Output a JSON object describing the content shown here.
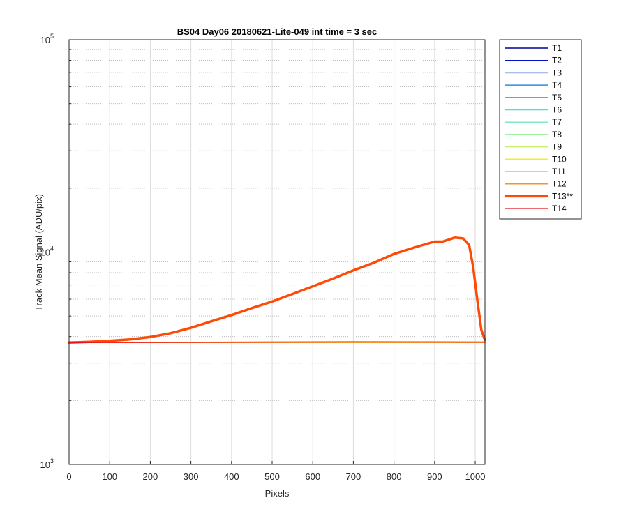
{
  "chart_data": {
    "type": "line",
    "title": "BS04 Day06 20180621-Lite-049 int time = 3 sec",
    "xlabel": "Pixels",
    "ylabel": "Track Mean Signal (ADU/pix)",
    "xlim": [
      0,
      1024
    ],
    "ylim": [
      1000,
      100000
    ],
    "yscale": "log",
    "grid": true,
    "minor_grid": true,
    "legend_position": "outside-right",
    "x_ticks": [
      0,
      100,
      200,
      300,
      400,
      500,
      600,
      700,
      800,
      900,
      1000
    ],
    "y_ticks": [
      {
        "value": 1000,
        "base": "10",
        "exp": "3"
      },
      {
        "value": 10000,
        "base": "10",
        "exp": "4"
      },
      {
        "value": 100000,
        "base": "10",
        "exp": "5"
      }
    ],
    "series": [
      {
        "name": "T1",
        "color": "#00008f",
        "width": 1.5,
        "x": [
          0,
          1024
        ],
        "y": [
          3750,
          3750
        ]
      },
      {
        "name": "T2",
        "color": "#0012c4",
        "width": 1.5,
        "x": [
          0,
          1024
        ],
        "y": [
          3750,
          3750
        ]
      },
      {
        "name": "T3",
        "color": "#1f4fd6",
        "width": 1.5,
        "x": [
          0,
          1024
        ],
        "y": [
          3750,
          3750
        ]
      },
      {
        "name": "T4",
        "color": "#2a8ee0",
        "width": 1.5,
        "x": [
          0,
          1024
        ],
        "y": [
          3750,
          3750
        ]
      },
      {
        "name": "T5",
        "color": "#33b8ee",
        "width": 1.5,
        "x": [
          0,
          1024
        ],
        "y": [
          3750,
          3750
        ]
      },
      {
        "name": "T6",
        "color": "#3fe3e3",
        "width": 1.5,
        "x": [
          0,
          1024
        ],
        "y": [
          3750,
          3750
        ]
      },
      {
        "name": "T7",
        "color": "#7fe8c8",
        "width": 1.5,
        "x": [
          0,
          1024
        ],
        "y": [
          3750,
          3750
        ]
      },
      {
        "name": "T8",
        "color": "#8ff08f",
        "width": 1.5,
        "x": [
          0,
          1024
        ],
        "y": [
          3750,
          3750
        ]
      },
      {
        "name": "T9",
        "color": "#c8f06a",
        "width": 1.5,
        "x": [
          0,
          1024
        ],
        "y": [
          3750,
          3750
        ]
      },
      {
        "name": "T10",
        "color": "#f4ee2a",
        "width": 1.5,
        "x": [
          0,
          1024
        ],
        "y": [
          3750,
          3750
        ]
      },
      {
        "name": "T11",
        "color": "#f4bf22",
        "width": 1.5,
        "x": [
          0,
          1024
        ],
        "y": [
          3750,
          3750
        ]
      },
      {
        "name": "T12",
        "color": "#f79427",
        "width": 1.5,
        "x": [
          0,
          1024
        ],
        "y": [
          3750,
          3750
        ]
      },
      {
        "name": "T13**",
        "color": "#ff4a05",
        "width": 3.5,
        "x": [
          0,
          50,
          100,
          150,
          200,
          250,
          300,
          350,
          400,
          450,
          500,
          550,
          600,
          650,
          700,
          750,
          800,
          850,
          900,
          920,
          950,
          970,
          985,
          995,
          1005,
          1015,
          1024
        ],
        "y": [
          3750,
          3780,
          3820,
          3880,
          3980,
          4150,
          4400,
          4720,
          5050,
          5450,
          5850,
          6350,
          6900,
          7500,
          8200,
          8900,
          9800,
          10500,
          11200,
          11200,
          11700,
          11600,
          10800,
          8500,
          6000,
          4300,
          3850
        ]
      },
      {
        "name": "T14",
        "color": "#e8101c",
        "width": 1.5,
        "x": [
          0,
          700,
          1024
        ],
        "y": [
          3750,
          3780,
          3770
        ]
      }
    ]
  }
}
